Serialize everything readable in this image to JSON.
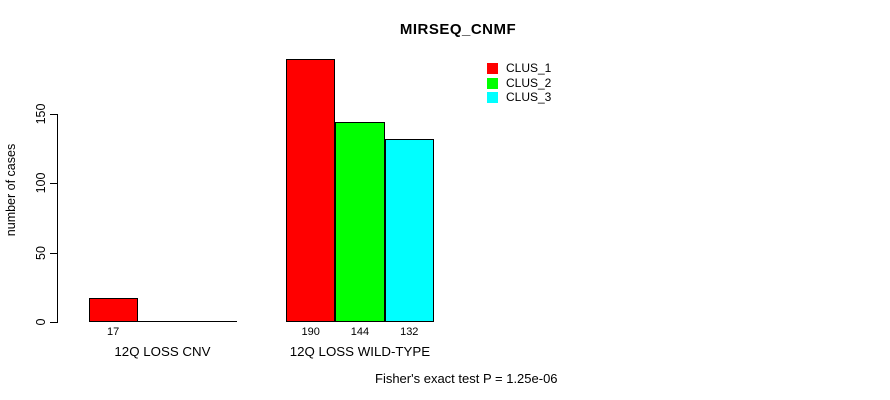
{
  "title": "MIRSEQ_CNMF",
  "chart_data": {
    "type": "bar",
    "title": "MIRSEQ_CNMF",
    "xlabel": "",
    "ylabel": "number of cases",
    "ylim": [
      0,
      150
    ],
    "yticks": [
      0,
      50,
      100,
      150
    ],
    "grid": false,
    "legend_position": "top-right-inside",
    "categories": [
      "12Q LOSS CNV",
      "12Q LOSS WILD-TYPE"
    ],
    "series": [
      {
        "name": "CLUS_1",
        "color": "#ff0000",
        "values": [
          17,
          190
        ]
      },
      {
        "name": "CLUS_2",
        "color": "#00ff00",
        "values": [
          0,
          144
        ]
      },
      {
        "name": "CLUS_3",
        "color": "#00ffff",
        "values": [
          0,
          132
        ]
      }
    ],
    "bar_labels": [
      [
        "17",
        null,
        null
      ],
      [
        "190",
        "144",
        "132"
      ]
    ],
    "annotation": "Fisher's exact test P = 1.25e-06"
  },
  "colors": {
    "background": "#ffffff",
    "axis": "#000000",
    "text": "#000000"
  }
}
